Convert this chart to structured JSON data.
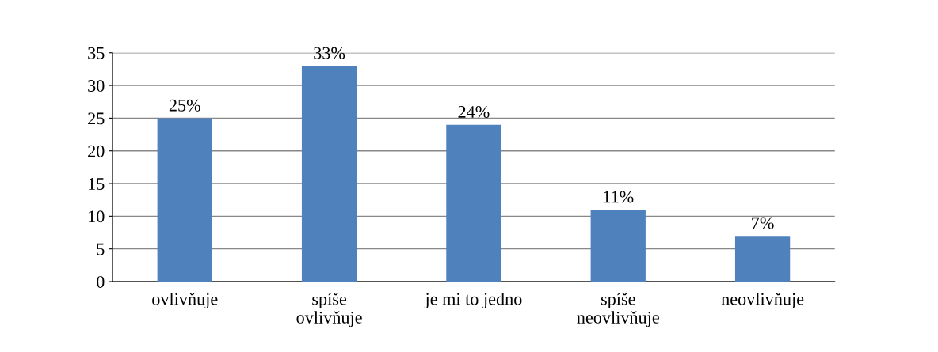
{
  "chart_data": {
    "type": "bar",
    "categories": [
      "ovlivňuje",
      "spíše\novlivňuje",
      "je mi to jedno",
      "spíše\nneovlivňuje",
      "neovlivňuje"
    ],
    "values": [
      25,
      33,
      24,
      11,
      7
    ],
    "value_labels": [
      "25%",
      "33%",
      "24%",
      "11%",
      "7%"
    ],
    "color": "#4f81bd",
    "ylim": [
      0,
      35
    ],
    "yticks": [
      0,
      5,
      10,
      15,
      20,
      25,
      30,
      35
    ],
    "grid": "y"
  }
}
